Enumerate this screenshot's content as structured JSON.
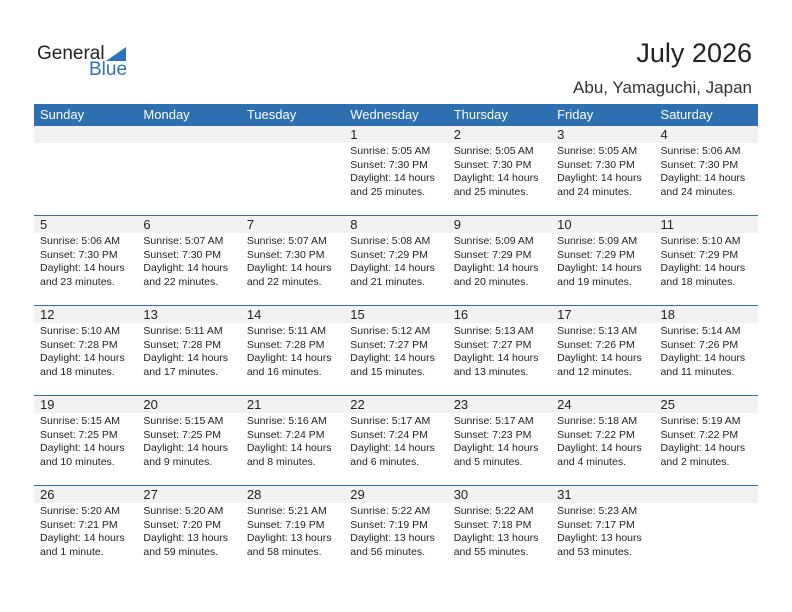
{
  "logo": {
    "line1": "General",
    "line2": "Blue"
  },
  "title": "July 2026",
  "location": "Abu, Yamaguchi, Japan",
  "colors": {
    "header": "#2e6fb0",
    "accent": "#2e73b8",
    "day_band": "#f2f2f2"
  },
  "weekdays": [
    "Sunday",
    "Monday",
    "Tuesday",
    "Wednesday",
    "Thursday",
    "Friday",
    "Saturday"
  ],
  "weeks": [
    [
      null,
      null,
      null,
      {
        "day": "1",
        "sunrise": "Sunrise: 5:05 AM",
        "sunset": "Sunset: 7:30 PM",
        "daylight1": "Daylight: 14 hours",
        "daylight2": "and 25 minutes."
      },
      {
        "day": "2",
        "sunrise": "Sunrise: 5:05 AM",
        "sunset": "Sunset: 7:30 PM",
        "daylight1": "Daylight: 14 hours",
        "daylight2": "and 25 minutes."
      },
      {
        "day": "3",
        "sunrise": "Sunrise: 5:05 AM",
        "sunset": "Sunset: 7:30 PM",
        "daylight1": "Daylight: 14 hours",
        "daylight2": "and 24 minutes."
      },
      {
        "day": "4",
        "sunrise": "Sunrise: 5:06 AM",
        "sunset": "Sunset: 7:30 PM",
        "daylight1": "Daylight: 14 hours",
        "daylight2": "and 24 minutes."
      }
    ],
    [
      {
        "day": "5",
        "sunrise": "Sunrise: 5:06 AM",
        "sunset": "Sunset: 7:30 PM",
        "daylight1": "Daylight: 14 hours",
        "daylight2": "and 23 minutes."
      },
      {
        "day": "6",
        "sunrise": "Sunrise: 5:07 AM",
        "sunset": "Sunset: 7:30 PM",
        "daylight1": "Daylight: 14 hours",
        "daylight2": "and 22 minutes."
      },
      {
        "day": "7",
        "sunrise": "Sunrise: 5:07 AM",
        "sunset": "Sunset: 7:30 PM",
        "daylight1": "Daylight: 14 hours",
        "daylight2": "and 22 minutes."
      },
      {
        "day": "8",
        "sunrise": "Sunrise: 5:08 AM",
        "sunset": "Sunset: 7:29 PM",
        "daylight1": "Daylight: 14 hours",
        "daylight2": "and 21 minutes."
      },
      {
        "day": "9",
        "sunrise": "Sunrise: 5:09 AM",
        "sunset": "Sunset: 7:29 PM",
        "daylight1": "Daylight: 14 hours",
        "daylight2": "and 20 minutes."
      },
      {
        "day": "10",
        "sunrise": "Sunrise: 5:09 AM",
        "sunset": "Sunset: 7:29 PM",
        "daylight1": "Daylight: 14 hours",
        "daylight2": "and 19 minutes."
      },
      {
        "day": "11",
        "sunrise": "Sunrise: 5:10 AM",
        "sunset": "Sunset: 7:29 PM",
        "daylight1": "Daylight: 14 hours",
        "daylight2": "and 18 minutes."
      }
    ],
    [
      {
        "day": "12",
        "sunrise": "Sunrise: 5:10 AM",
        "sunset": "Sunset: 7:28 PM",
        "daylight1": "Daylight: 14 hours",
        "daylight2": "and 18 minutes."
      },
      {
        "day": "13",
        "sunrise": "Sunrise: 5:11 AM",
        "sunset": "Sunset: 7:28 PM",
        "daylight1": "Daylight: 14 hours",
        "daylight2": "and 17 minutes."
      },
      {
        "day": "14",
        "sunrise": "Sunrise: 5:11 AM",
        "sunset": "Sunset: 7:28 PM",
        "daylight1": "Daylight: 14 hours",
        "daylight2": "and 16 minutes."
      },
      {
        "day": "15",
        "sunrise": "Sunrise: 5:12 AM",
        "sunset": "Sunset: 7:27 PM",
        "daylight1": "Daylight: 14 hours",
        "daylight2": "and 15 minutes."
      },
      {
        "day": "16",
        "sunrise": "Sunrise: 5:13 AM",
        "sunset": "Sunset: 7:27 PM",
        "daylight1": "Daylight: 14 hours",
        "daylight2": "and 13 minutes."
      },
      {
        "day": "17",
        "sunrise": "Sunrise: 5:13 AM",
        "sunset": "Sunset: 7:26 PM",
        "daylight1": "Daylight: 14 hours",
        "daylight2": "and 12 minutes."
      },
      {
        "day": "18",
        "sunrise": "Sunrise: 5:14 AM",
        "sunset": "Sunset: 7:26 PM",
        "daylight1": "Daylight: 14 hours",
        "daylight2": "and 11 minutes."
      }
    ],
    [
      {
        "day": "19",
        "sunrise": "Sunrise: 5:15 AM",
        "sunset": "Sunset: 7:25 PM",
        "daylight1": "Daylight: 14 hours",
        "daylight2": "and 10 minutes."
      },
      {
        "day": "20",
        "sunrise": "Sunrise: 5:15 AM",
        "sunset": "Sunset: 7:25 PM",
        "daylight1": "Daylight: 14 hours",
        "daylight2": "and 9 minutes."
      },
      {
        "day": "21",
        "sunrise": "Sunrise: 5:16 AM",
        "sunset": "Sunset: 7:24 PM",
        "daylight1": "Daylight: 14 hours",
        "daylight2": "and 8 minutes."
      },
      {
        "day": "22",
        "sunrise": "Sunrise: 5:17 AM",
        "sunset": "Sunset: 7:24 PM",
        "daylight1": "Daylight: 14 hours",
        "daylight2": "and 6 minutes."
      },
      {
        "day": "23",
        "sunrise": "Sunrise: 5:17 AM",
        "sunset": "Sunset: 7:23 PM",
        "daylight1": "Daylight: 14 hours",
        "daylight2": "and 5 minutes."
      },
      {
        "day": "24",
        "sunrise": "Sunrise: 5:18 AM",
        "sunset": "Sunset: 7:22 PM",
        "daylight1": "Daylight: 14 hours",
        "daylight2": "and 4 minutes."
      },
      {
        "day": "25",
        "sunrise": "Sunrise: 5:19 AM",
        "sunset": "Sunset: 7:22 PM",
        "daylight1": "Daylight: 14 hours",
        "daylight2": "and 2 minutes."
      }
    ],
    [
      {
        "day": "26",
        "sunrise": "Sunrise: 5:20 AM",
        "sunset": "Sunset: 7:21 PM",
        "daylight1": "Daylight: 14 hours",
        "daylight2": "and 1 minute."
      },
      {
        "day": "27",
        "sunrise": "Sunrise: 5:20 AM",
        "sunset": "Sunset: 7:20 PM",
        "daylight1": "Daylight: 13 hours",
        "daylight2": "and 59 minutes."
      },
      {
        "day": "28",
        "sunrise": "Sunrise: 5:21 AM",
        "sunset": "Sunset: 7:19 PM",
        "daylight1": "Daylight: 13 hours",
        "daylight2": "and 58 minutes."
      },
      {
        "day": "29",
        "sunrise": "Sunrise: 5:22 AM",
        "sunset": "Sunset: 7:19 PM",
        "daylight1": "Daylight: 13 hours",
        "daylight2": "and 56 minutes."
      },
      {
        "day": "30",
        "sunrise": "Sunrise: 5:22 AM",
        "sunset": "Sunset: 7:18 PM",
        "daylight1": "Daylight: 13 hours",
        "daylight2": "and 55 minutes."
      },
      {
        "day": "31",
        "sunrise": "Sunrise: 5:23 AM",
        "sunset": "Sunset: 7:17 PM",
        "daylight1": "Daylight: 13 hours",
        "daylight2": "and 53 minutes."
      },
      null
    ]
  ]
}
